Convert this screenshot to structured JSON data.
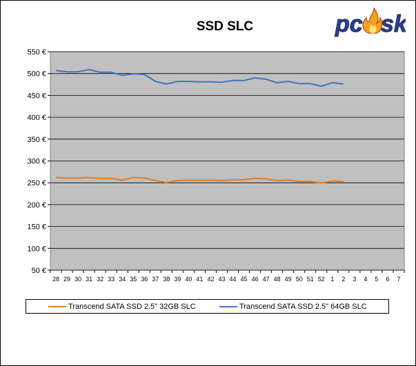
{
  "logo_text": "pcisk",
  "chart_data": {
    "type": "line",
    "title": "SSD SLC",
    "xlabel": "",
    "ylabel": "",
    "ylim": [
      50,
      550
    ],
    "yticks": [
      "50 €",
      "100 €",
      "150 €",
      "200 €",
      "250 €",
      "300 €",
      "350 €",
      "400 €",
      "450 €",
      "500 €",
      "550 €"
    ],
    "ytick_values": [
      50,
      100,
      150,
      200,
      250,
      300,
      350,
      400,
      450,
      500,
      550
    ],
    "categories": [
      "28",
      "29",
      "30",
      "31",
      "32",
      "33",
      "34",
      "35",
      "36",
      "37",
      "38",
      "39",
      "40",
      "41",
      "42",
      "43",
      "44",
      "45",
      "46",
      "47",
      "48",
      "49",
      "50",
      "51",
      "52",
      "1",
      "2",
      "3",
      "4",
      "5",
      "6",
      "7"
    ],
    "grid": "horizontal",
    "background": "#c0c0c0",
    "legend_position": "bottom",
    "series": [
      {
        "name": "Transcend SATA SSD 2.5\" 32GB SLC",
        "color": "#e87c1e",
        "values": [
          262,
          261,
          261,
          262,
          260,
          260,
          256,
          262,
          261,
          255,
          251,
          255,
          256,
          256,
          256,
          255,
          257,
          257,
          260,
          259,
          255,
          256,
          253,
          253,
          250,
          254,
          253,
          null,
          null,
          null,
          null,
          null
        ]
      },
      {
        "name": "Transcend SATA SSD 2.5\" 64GB SLC",
        "color": "#3f74c2",
        "values": [
          507,
          504,
          504,
          509,
          503,
          503,
          496,
          499,
          498,
          482,
          476,
          482,
          482,
          481,
          481,
          480,
          484,
          484,
          490,
          487,
          479,
          482,
          477,
          477,
          471,
          479,
          476,
          null,
          null,
          null,
          null,
          null
        ]
      }
    ]
  }
}
